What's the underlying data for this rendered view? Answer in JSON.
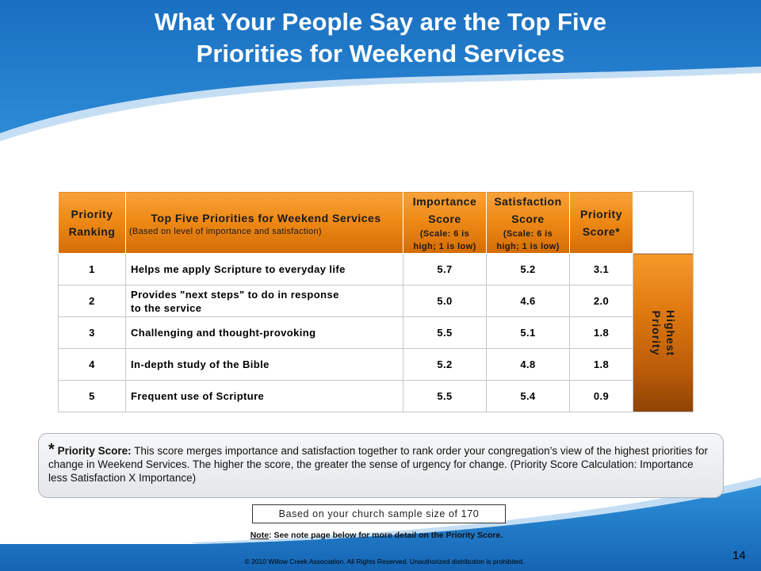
{
  "slide": {
    "title_line1": "What Your People Say are the Top Five",
    "title_line2": "Priorities for Weekend Services",
    "page_number": "14"
  },
  "colors": {
    "header_blue": "#1f7ac8",
    "header_orange": "#ef8a16",
    "side_brown": "#8e4306"
  },
  "table": {
    "headers": {
      "rank": [
        "Priority",
        "Ranking"
      ],
      "item_title": "Top Five Priorities for Weekend Services",
      "item_sub": "(Based on level of importance and satisfaction)",
      "importance": [
        "Importance",
        "Score"
      ],
      "importance_scale": [
        "(Scale: 6 is",
        "high; 1 is low)"
      ],
      "satisfaction": [
        "Satisfaction",
        "Score"
      ],
      "satisfaction_scale": [
        "(Scale: 6 is",
        "high; 1 is low)"
      ],
      "priority": [
        "Priority",
        "Score*"
      ]
    },
    "rows": [
      {
        "rank": "1",
        "item": "Helps me apply Scripture to everyday life",
        "importance": "5.7",
        "satisfaction": "5.2",
        "priority": "3.1"
      },
      {
        "rank": "2",
        "item": "Provides \"next steps\" to do in response",
        "item2": "to the service",
        "importance": "5.0",
        "satisfaction": "4.6",
        "priority": "2.0"
      },
      {
        "rank": "3",
        "item": "Challenging and thought-provoking",
        "importance": "5.5",
        "satisfaction": "5.1",
        "priority": "1.8"
      },
      {
        "rank": "4",
        "item": "In-depth study of the Bible",
        "importance": "5.2",
        "satisfaction": "4.8",
        "priority": "1.8"
      },
      {
        "rank": "5",
        "item": "Frequent use of Scripture",
        "importance": "5.5",
        "satisfaction": "5.4",
        "priority": "0.9"
      }
    ],
    "side_label": [
      "Highest",
      "Priority"
    ]
  },
  "note": {
    "star": "*",
    "label": "Priority Score:",
    "text": " This score merges importance and satisfaction together to rank order your congregation’s view of the highest priorities for change in Weekend Services. The higher the score, the greater the sense of urgency for change. (Priority Score Calculation: Importance less Satisfaction X Importance)"
  },
  "sample": "Based on your church sample size of 170",
  "footnote": {
    "label": "Note",
    "text": ":  See note page below for  more detail on the Priority Score."
  },
  "copyright": "© 2010 Willow Creek Association.  All Rights Reserved.  Unauthorized distribution is prohibited."
}
